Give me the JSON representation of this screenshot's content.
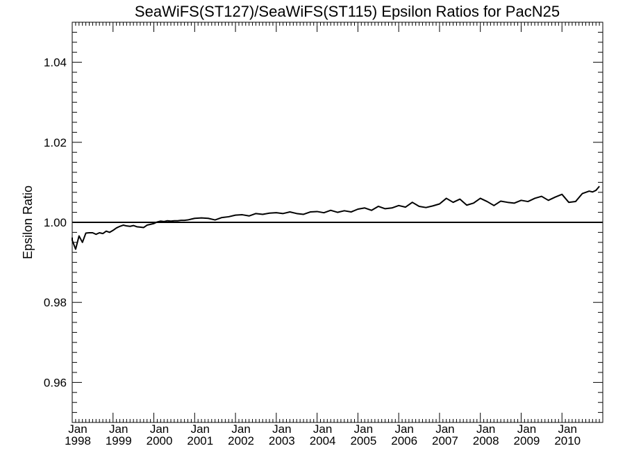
{
  "chart_data": {
    "type": "line",
    "title": "SeaWiFS(ST127)/SeaWiFS(ST115)  Epsilon Ratios for PacN25",
    "xlabel": "",
    "ylabel": "Epsilon Ratio",
    "xlim": [
      "1998-01",
      "2010-12"
    ],
    "ylim": [
      0.95,
      1.05
    ],
    "yticks": [
      0.96,
      0.98,
      1.0,
      1.02,
      1.04
    ],
    "ytick_labels": [
      "0.96",
      "0.98",
      "1.00",
      "1.02",
      "1.04"
    ],
    "xtick_labels": [
      {
        "month": "Jan",
        "year": "1998"
      },
      {
        "month": "Jan",
        "year": "1999"
      },
      {
        "month": "Jan",
        "year": "2000"
      },
      {
        "month": "Jan",
        "year": "2001"
      },
      {
        "month": "Jan",
        "year": "2002"
      },
      {
        "month": "Jan",
        "year": "2003"
      },
      {
        "month": "Jan",
        "year": "2004"
      },
      {
        "month": "Jan",
        "year": "2005"
      },
      {
        "month": "Jan",
        "year": "2006"
      },
      {
        "month": "Jan",
        "year": "2007"
      },
      {
        "month": "Jan",
        "year": "2008"
      },
      {
        "month": "Jan",
        "year": "2009"
      },
      {
        "month": "Jan",
        "year": "2010"
      }
    ],
    "reference_line": 1.0,
    "grid": false,
    "series": [
      {
        "color": "#000000",
        "x": [
          "1997-12",
          "1998-01",
          "1998-02",
          "1998-03",
          "1998-04",
          "1998-05",
          "1998-06",
          "1998-07",
          "1998-08",
          "1998-09",
          "1998-10",
          "1998-11",
          "1998-12",
          "1999-01",
          "1999-02",
          "1999-03",
          "1999-04",
          "1999-05",
          "1999-06",
          "1999-07",
          "1999-08",
          "1999-09",
          "1999-10",
          "1999-11",
          "1999-12",
          "2000-01",
          "2000-02",
          "2000-03",
          "2000-04",
          "2000-05",
          "2000-06",
          "2000-07",
          "2000-08",
          "2000-09",
          "2000-10",
          "2000-11",
          "2000-12",
          "2001-01",
          "2001-03",
          "2001-05",
          "2001-07",
          "2001-09",
          "2001-11",
          "2002-01",
          "2002-03",
          "2002-05",
          "2002-07",
          "2002-09",
          "2002-11",
          "2003-01",
          "2003-03",
          "2003-05",
          "2003-07",
          "2003-09",
          "2003-11",
          "2004-01",
          "2004-03",
          "2004-05",
          "2004-07",
          "2004-09",
          "2004-11",
          "2005-01",
          "2005-03",
          "2005-05",
          "2005-07",
          "2005-09",
          "2005-11",
          "2006-01",
          "2006-03",
          "2006-05",
          "2006-07",
          "2006-09",
          "2006-11",
          "2007-01",
          "2007-03",
          "2007-05",
          "2007-07",
          "2007-09",
          "2007-11",
          "2008-01",
          "2008-03",
          "2008-05",
          "2008-07",
          "2008-09",
          "2008-11",
          "2009-01",
          "2009-03",
          "2009-05",
          "2009-07",
          "2009-09",
          "2009-11",
          "2010-01",
          "2010-03",
          "2010-05",
          "2010-07",
          "2010-09",
          "2010-10",
          "2010-11",
          "2010-12"
        ],
        "values": [
          0.9962,
          0.9955,
          0.9933,
          0.9966,
          0.995,
          0.9973,
          0.9974,
          0.9974,
          0.997,
          0.9974,
          0.9972,
          0.9978,
          0.9975,
          0.998,
          0.9986,
          0.999,
          0.9993,
          0.9991,
          0.999,
          0.9992,
          0.9989,
          0.9988,
          0.9987,
          0.9993,
          0.9995,
          0.9997,
          1.0001,
          1.0003,
          1.0002,
          1.0004,
          1.0003,
          1.0004,
          1.0004,
          1.0005,
          1.0005,
          1.0006,
          1.0008,
          1.001,
          1.0011,
          1.001,
          1.0006,
          1.0012,
          1.0014,
          1.0018,
          1.0019,
          1.0016,
          1.0022,
          1.002,
          1.0023,
          1.0024,
          1.0022,
          1.0026,
          1.0022,
          1.002,
          1.0026,
          1.0027,
          1.0024,
          1.003,
          1.0025,
          1.0029,
          1.0026,
          1.0033,
          1.0036,
          1.003,
          1.004,
          1.0034,
          1.0036,
          1.0042,
          1.0038,
          1.005,
          1.004,
          1.0037,
          1.0041,
          1.0046,
          1.006,
          1.005,
          1.0058,
          1.0043,
          1.0048,
          1.006,
          1.0052,
          1.0042,
          1.0053,
          1.005,
          1.0048,
          1.0055,
          1.0052,
          1.006,
          1.0065,
          1.0055,
          1.0063,
          1.007,
          1.005,
          1.0052,
          1.0072,
          1.0078,
          1.0076,
          1.008,
          1.009
        ]
      }
    ]
  }
}
